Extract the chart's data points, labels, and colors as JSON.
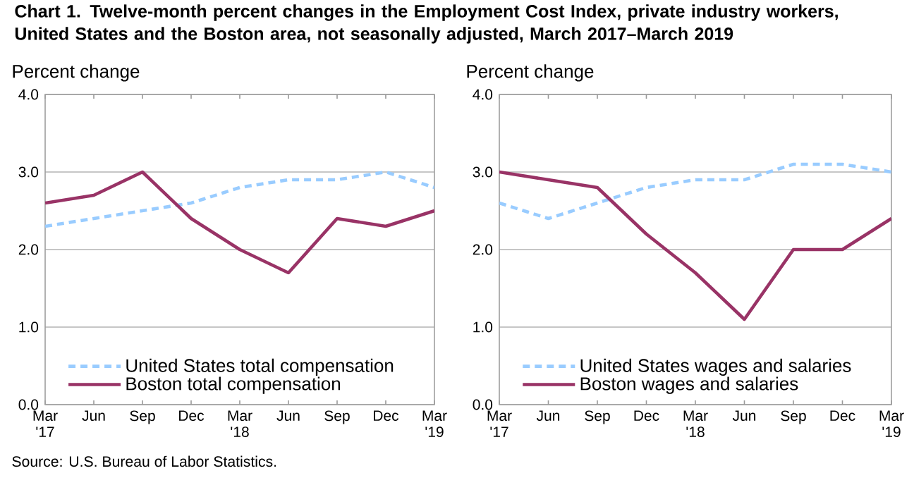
{
  "chart_data": [
    {
      "type": "line",
      "title": "Chart 1. Twelve-month percent changes in the Employment Cost Index, private industry workers, United States and the Boston area, not seasonally adjusted, March 2017–March 2019",
      "ylabel": "Percent change",
      "categories": [
        "Mar '17",
        "Jun",
        "Sep",
        "Dec",
        "Mar '18",
        "Jun",
        "Sep",
        "Dec",
        "Mar '19"
      ],
      "series": [
        {
          "name": "United States total compensation",
          "color": "#99ccff",
          "line_style": "dashed",
          "values": [
            2.3,
            2.4,
            2.5,
            2.6,
            2.8,
            2.9,
            2.9,
            3.0,
            2.8
          ]
        },
        {
          "name": "Boston total compensation",
          "color": "#993366",
          "line_style": "solid",
          "values": [
            2.6,
            2.7,
            3.0,
            2.4,
            2.0,
            1.7,
            2.4,
            2.3,
            2.5
          ]
        }
      ],
      "ylim": [
        0,
        4
      ],
      "yticks": [
        {
          "value": 0,
          "label": "0.0"
        },
        {
          "value": 1,
          "label": "1.0"
        },
        {
          "value": 2,
          "label": "2.0"
        },
        {
          "value": 3,
          "label": "3.0"
        },
        {
          "value": 4,
          "label": "4.0"
        }
      ],
      "grid": "y",
      "legend": "bottom left",
      "annotations": [
        "Source: U.S. Bureau of Labor Statistics."
      ]
    },
    {
      "type": "line",
      "ylabel": "Percent change",
      "categories": [
        "Mar '17",
        "Jun",
        "Sep",
        "Dec",
        "Mar '18",
        "Jun",
        "Sep",
        "Dec",
        "Mar '19"
      ],
      "series": [
        {
          "name": "United States wages and salaries",
          "color": "#99ccff",
          "line_style": "dashed",
          "values": [
            2.6,
            2.4,
            2.6,
            2.8,
            2.9,
            2.9,
            3.1,
            3.1,
            3.0
          ]
        },
        {
          "name": "Boston wages and salaries",
          "color": "#993366",
          "line_style": "solid",
          "values": [
            3.0,
            2.9,
            2.8,
            2.2,
            1.7,
            1.1,
            2.0,
            2.0,
            2.4
          ]
        }
      ],
      "ylim": [
        0,
        4
      ],
      "yticks": [
        {
          "value": 0,
          "label": "0.0"
        },
        {
          "value": 1,
          "label": "1.0"
        },
        {
          "value": 2,
          "label": "2.0"
        },
        {
          "value": 3,
          "label": "3.0"
        },
        {
          "value": 4,
          "label": "4.0"
        }
      ],
      "grid": "y",
      "legend": "bottom left"
    }
  ]
}
